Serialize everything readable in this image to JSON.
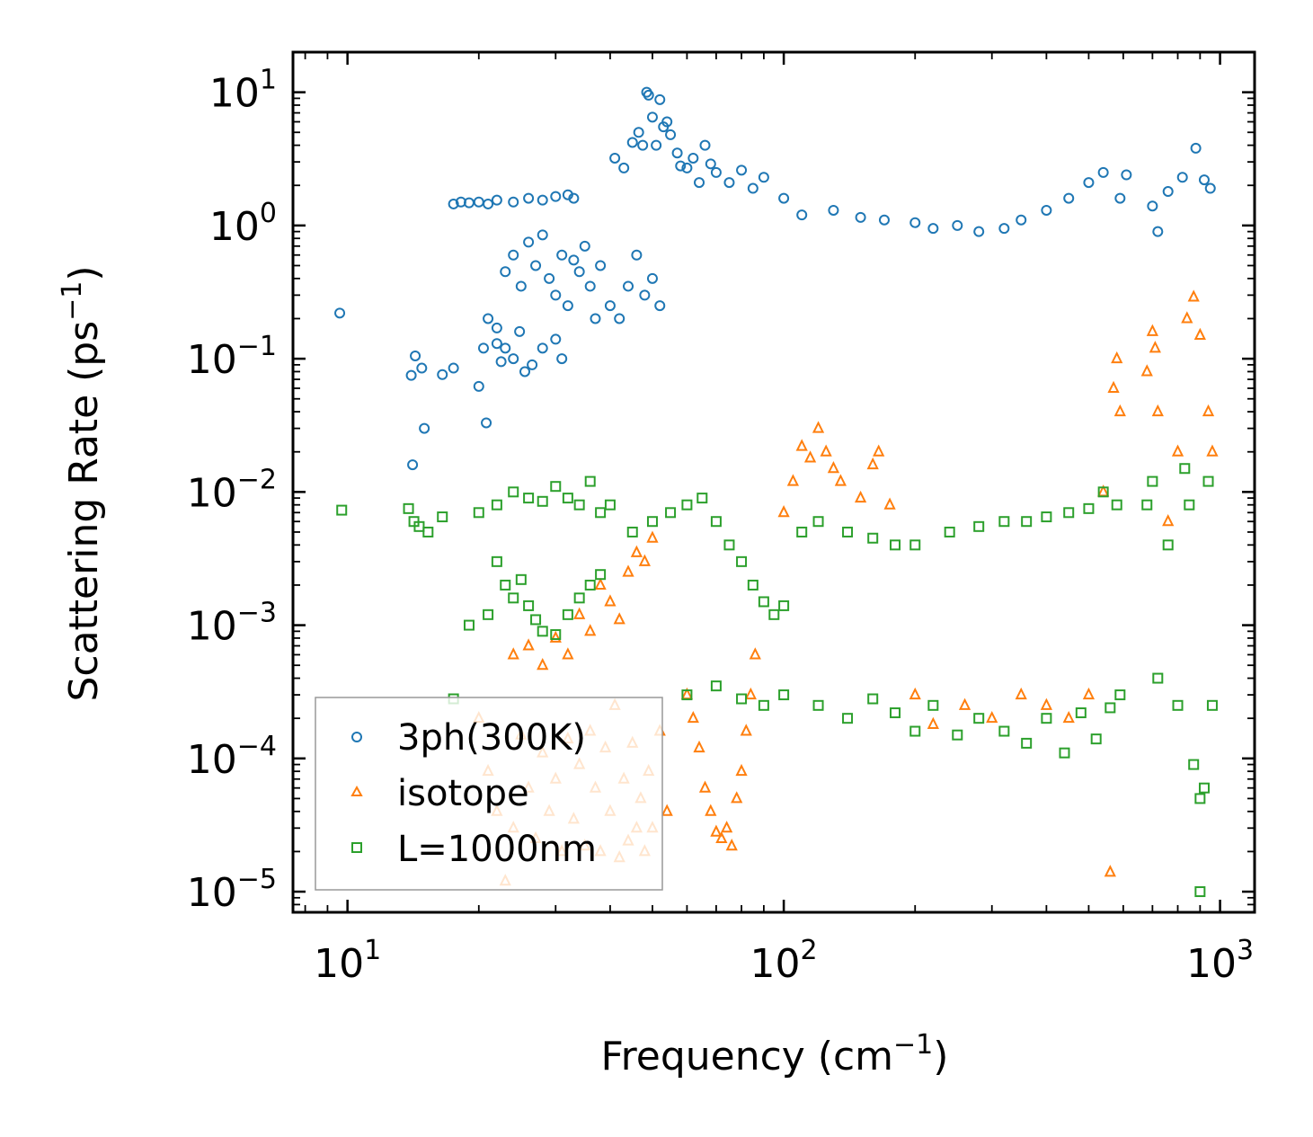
{
  "chart_data": {
    "type": "scatter",
    "xscale": "log",
    "yscale": "log",
    "xlim": [
      7.5,
      1200
    ],
    "ylim": [
      7e-06,
      20
    ],
    "xlabel": "Frequency (cm",
    "xlabel_sup": "−1",
    "xlabel_end": ")",
    "ylabel": "Scattering Rate (ps",
    "ylabel_sup": "−1",
    "ylabel_end": ")",
    "x_ticks": [
      {
        "base": "10",
        "exp": "1",
        "value": 10
      },
      {
        "base": "10",
        "exp": "2",
        "value": 100
      },
      {
        "base": "10",
        "exp": "3",
        "value": 1000
      }
    ],
    "y_ticks": [
      {
        "base": "10",
        "exp": "1",
        "value": 10
      },
      {
        "base": "10",
        "exp": "0",
        "value": 1
      },
      {
        "base": "10",
        "exp": "−1",
        "value": 0.1
      },
      {
        "base": "10",
        "exp": "−2",
        "value": 0.01
      },
      {
        "base": "10",
        "exp": "−3",
        "value": 0.001
      },
      {
        "base": "10",
        "exp": "−4",
        "value": 0.0001
      },
      {
        "base": "10",
        "exp": "−5",
        "value": 1e-05
      }
    ],
    "legend_position": "lower-left",
    "series": [
      {
        "name": "3ph(300K)",
        "marker": "circle",
        "color": "#1f77b4",
        "points": [
          [
            9.6,
            0.22
          ],
          [
            14,
            0.075
          ],
          [
            14.3,
            0.105
          ],
          [
            14.8,
            0.085
          ],
          [
            14.1,
            0.016
          ],
          [
            15,
            0.03
          ],
          [
            16.5,
            0.076
          ],
          [
            17.5,
            0.085
          ],
          [
            20,
            0.062
          ],
          [
            20.8,
            0.033
          ],
          [
            21,
            0.2
          ],
          [
            22,
            0.13
          ],
          [
            22.5,
            0.095
          ],
          [
            23,
            0.12
          ],
          [
            24,
            0.1
          ],
          [
            24.8,
            0.16
          ],
          [
            25.5,
            0.08
          ],
          [
            26.5,
            0.09
          ],
          [
            28,
            0.12
          ],
          [
            30,
            0.14
          ],
          [
            31,
            0.1
          ],
          [
            20.5,
            0.12
          ],
          [
            22,
            0.17
          ],
          [
            17.5,
            1.45
          ],
          [
            18.2,
            1.5
          ],
          [
            19,
            1.48
          ],
          [
            20,
            1.5
          ],
          [
            21,
            1.45
          ],
          [
            22,
            1.55
          ],
          [
            24,
            1.5
          ],
          [
            26,
            1.6
          ],
          [
            28,
            1.55
          ],
          [
            30,
            1.65
          ],
          [
            32,
            1.7
          ],
          [
            33,
            1.6
          ],
          [
            23,
            0.45
          ],
          [
            24,
            0.6
          ],
          [
            25,
            0.35
          ],
          [
            26,
            0.75
          ],
          [
            27,
            0.5
          ],
          [
            28,
            0.85
          ],
          [
            29,
            0.4
          ],
          [
            30,
            0.3
          ],
          [
            31,
            0.6
          ],
          [
            32,
            0.25
          ],
          [
            33,
            0.55
          ],
          [
            34,
            0.45
          ],
          [
            35,
            0.7
          ],
          [
            36,
            0.35
          ],
          [
            37,
            0.2
          ],
          [
            38,
            0.5
          ],
          [
            40,
            0.25
          ],
          [
            42,
            0.2
          ],
          [
            44,
            0.35
          ],
          [
            46,
            0.6
          ],
          [
            48,
            0.3
          ],
          [
            50,
            0.4
          ],
          [
            52,
            0.25
          ],
          [
            41,
            3.2
          ],
          [
            43,
            2.7
          ],
          [
            45,
            4.2
          ],
          [
            46.5,
            5
          ],
          [
            47.5,
            4
          ],
          [
            48.5,
            10
          ],
          [
            49,
            9.5
          ],
          [
            50,
            6.5
          ],
          [
            51,
            4
          ],
          [
            52,
            8.8
          ],
          [
            53,
            5.5
          ],
          [
            54,
            6
          ],
          [
            55,
            4.8
          ],
          [
            57,
            3.5
          ],
          [
            58,
            2.8
          ],
          [
            60,
            2.7
          ],
          [
            62,
            3.2
          ],
          [
            64,
            2.1
          ],
          [
            66,
            4
          ],
          [
            68,
            2.9
          ],
          [
            70,
            2.5
          ],
          [
            75,
            2.1
          ],
          [
            80,
            2.6
          ],
          [
            85,
            1.9
          ],
          [
            90,
            2.3
          ],
          [
            100,
            1.6
          ],
          [
            110,
            1.2
          ],
          [
            130,
            1.3
          ],
          [
            150,
            1.15
          ],
          [
            170,
            1.1
          ],
          [
            200,
            1.05
          ],
          [
            220,
            0.95
          ],
          [
            250,
            1
          ],
          [
            280,
            0.9
          ],
          [
            320,
            0.95
          ],
          [
            350,
            1.1
          ],
          [
            400,
            1.3
          ],
          [
            450,
            1.6
          ],
          [
            500,
            2.1
          ],
          [
            540,
            2.5
          ],
          [
            590,
            1.6
          ],
          [
            610,
            2.4
          ],
          [
            700,
            1.4
          ],
          [
            720,
            0.9
          ],
          [
            760,
            1.8
          ],
          [
            820,
            2.3
          ],
          [
            880,
            3.8
          ],
          [
            920,
            2.2
          ],
          [
            950,
            1.9
          ]
        ]
      },
      {
        "name": "isotope",
        "marker": "triangle-up",
        "color": "#ff7f0e",
        "points": [
          [
            24,
            0.0006
          ],
          [
            26,
            0.0007
          ],
          [
            28,
            0.0005
          ],
          [
            30,
            0.0008
          ],
          [
            32,
            0.0006
          ],
          [
            34,
            0.0012
          ],
          [
            36,
            0.0009
          ],
          [
            38,
            0.002
          ],
          [
            40,
            0.0015
          ],
          [
            42,
            0.0011
          ],
          [
            44,
            0.0025
          ],
          [
            46,
            0.0035
          ],
          [
            48,
            0.003
          ],
          [
            50,
            0.0045
          ],
          [
            20,
            0.0002
          ],
          [
            21,
            8e-05
          ],
          [
            22,
            4e-05
          ],
          [
            23,
            1.2e-05
          ],
          [
            24,
            3e-05
          ],
          [
            25,
            0.00015
          ],
          [
            26,
            6e-05
          ],
          [
            27,
            2.5e-05
          ],
          [
            28,
            0.00011
          ],
          [
            29,
            4e-05
          ],
          [
            30,
            7e-05
          ],
          [
            31,
            2e-05
          ],
          [
            32,
            0.00014
          ],
          [
            33,
            3.5e-05
          ],
          [
            34,
            9e-05
          ],
          [
            35,
            2.2e-05
          ],
          [
            36,
            0.00016
          ],
          [
            37,
            6e-05
          ],
          [
            38,
            2e-05
          ],
          [
            39,
            0.00012
          ],
          [
            40,
            4e-05
          ],
          [
            41,
            0.00025
          ],
          [
            42,
            1.8e-05
          ],
          [
            43,
            7e-05
          ],
          [
            44,
            2.4e-05
          ],
          [
            45,
            0.00013
          ],
          [
            46,
            3e-05
          ],
          [
            47,
            5e-05
          ],
          [
            48,
            2e-05
          ],
          [
            49,
            8e-05
          ],
          [
            50,
            3e-05
          ],
          [
            52,
            0.00016
          ],
          [
            54,
            4e-05
          ],
          [
            60,
            0.0003
          ],
          [
            62,
            0.0002
          ],
          [
            64,
            0.00012
          ],
          [
            66,
            6e-05
          ],
          [
            68,
            4e-05
          ],
          [
            70,
            2.8e-05
          ],
          [
            72,
            2.5e-05
          ],
          [
            74,
            3e-05
          ],
          [
            76,
            2.2e-05
          ],
          [
            78,
            5e-05
          ],
          [
            80,
            8e-05
          ],
          [
            82,
            0.00016
          ],
          [
            84,
            0.0003
          ],
          [
            86,
            0.0006
          ],
          [
            100,
            0.007
          ],
          [
            105,
            0.012
          ],
          [
            110,
            0.022
          ],
          [
            115,
            0.018
          ],
          [
            120,
            0.03
          ],
          [
            125,
            0.02
          ],
          [
            130,
            0.015
          ],
          [
            135,
            0.012
          ],
          [
            150,
            0.009
          ],
          [
            160,
            0.016
          ],
          [
            165,
            0.02
          ],
          [
            175,
            0.008
          ],
          [
            200,
            0.0003
          ],
          [
            220,
            0.00018
          ],
          [
            260,
            0.00025
          ],
          [
            300,
            0.0002
          ],
          [
            350,
            0.0003
          ],
          [
            400,
            0.00025
          ],
          [
            450,
            0.0002
          ],
          [
            500,
            0.0003
          ],
          [
            540,
            0.01
          ],
          [
            560,
            1.4e-05
          ],
          [
            570,
            0.06
          ],
          [
            580,
            0.1
          ],
          [
            590,
            0.04
          ],
          [
            680,
            0.08
          ],
          [
            700,
            0.16
          ],
          [
            710,
            0.12
          ],
          [
            720,
            0.04
          ],
          [
            760,
            0.006
          ],
          [
            800,
            0.02
          ],
          [
            840,
            0.2
          ],
          [
            870,
            0.29
          ],
          [
            900,
            0.15
          ],
          [
            940,
            0.04
          ],
          [
            960,
            0.02
          ]
        ]
      },
      {
        "name": "L=1000nm",
        "marker": "square",
        "color": "#2ca02c",
        "points": [
          [
            9.7,
            0.0073
          ],
          [
            13.8,
            0.0075
          ],
          [
            14.2,
            0.006
          ],
          [
            14.6,
            0.0055
          ],
          [
            15.3,
            0.005
          ],
          [
            16.5,
            0.0065
          ],
          [
            17.5,
            0.00028
          ],
          [
            19,
            0.001
          ],
          [
            20,
            0.007
          ],
          [
            21,
            0.0012
          ],
          [
            22,
            0.003
          ],
          [
            23,
            0.002
          ],
          [
            24,
            0.0016
          ],
          [
            25,
            0.0022
          ],
          [
            26,
            0.0014
          ],
          [
            27,
            0.0011
          ],
          [
            28,
            0.0009
          ],
          [
            30,
            0.00085
          ],
          [
            32,
            0.0012
          ],
          [
            34,
            0.0016
          ],
          [
            36,
            0.002
          ],
          [
            38,
            0.0024
          ],
          [
            22,
            0.008
          ],
          [
            24,
            0.01
          ],
          [
            26,
            0.009
          ],
          [
            28,
            0.0085
          ],
          [
            30,
            0.011
          ],
          [
            32,
            0.009
          ],
          [
            34,
            0.008
          ],
          [
            36,
            0.012
          ],
          [
            38,
            0.007
          ],
          [
            40,
            0.008
          ],
          [
            45,
            0.005
          ],
          [
            50,
            0.006
          ],
          [
            55,
            0.007
          ],
          [
            60,
            0.008
          ],
          [
            65,
            0.009
          ],
          [
            70,
            0.006
          ],
          [
            75,
            0.004
          ],
          [
            80,
            0.003
          ],
          [
            85,
            0.002
          ],
          [
            90,
            0.0015
          ],
          [
            95,
            0.0012
          ],
          [
            100,
            0.0014
          ],
          [
            110,
            0.005
          ],
          [
            120,
            0.006
          ],
          [
            140,
            0.005
          ],
          [
            160,
            0.0045
          ],
          [
            180,
            0.004
          ],
          [
            200,
            0.004
          ],
          [
            240,
            0.005
          ],
          [
            280,
            0.0055
          ],
          [
            320,
            0.006
          ],
          [
            360,
            0.006
          ],
          [
            400,
            0.0065
          ],
          [
            450,
            0.007
          ],
          [
            500,
            0.0075
          ],
          [
            540,
            0.01
          ],
          [
            580,
            0.008
          ],
          [
            60,
            0.0003
          ],
          [
            70,
            0.00035
          ],
          [
            80,
            0.00028
          ],
          [
            90,
            0.00025
          ],
          [
            100,
            0.0003
          ],
          [
            120,
            0.00025
          ],
          [
            140,
            0.0002
          ],
          [
            160,
            0.00028
          ],
          [
            180,
            0.00022
          ],
          [
            200,
            0.00016
          ],
          [
            220,
            0.00025
          ],
          [
            250,
            0.00015
          ],
          [
            280,
            0.0002
          ],
          [
            320,
            0.00016
          ],
          [
            360,
            0.00013
          ],
          [
            400,
            0.0002
          ],
          [
            440,
            0.00011
          ],
          [
            480,
            0.00022
          ],
          [
            520,
            0.00014
          ],
          [
            560,
            0.00024
          ],
          [
            590,
            0.0003
          ],
          [
            680,
            0.008
          ],
          [
            700,
            0.012
          ],
          [
            720,
            0.0004
          ],
          [
            760,
            0.004
          ],
          [
            800,
            0.00025
          ],
          [
            830,
            0.015
          ],
          [
            850,
            0.008
          ],
          [
            870,
            9e-05
          ],
          [
            900,
            5e-05
          ],
          [
            920,
            6e-05
          ],
          [
            940,
            0.012
          ],
          [
            960,
            0.00025
          ],
          [
            900,
            1e-05
          ]
        ]
      }
    ]
  }
}
